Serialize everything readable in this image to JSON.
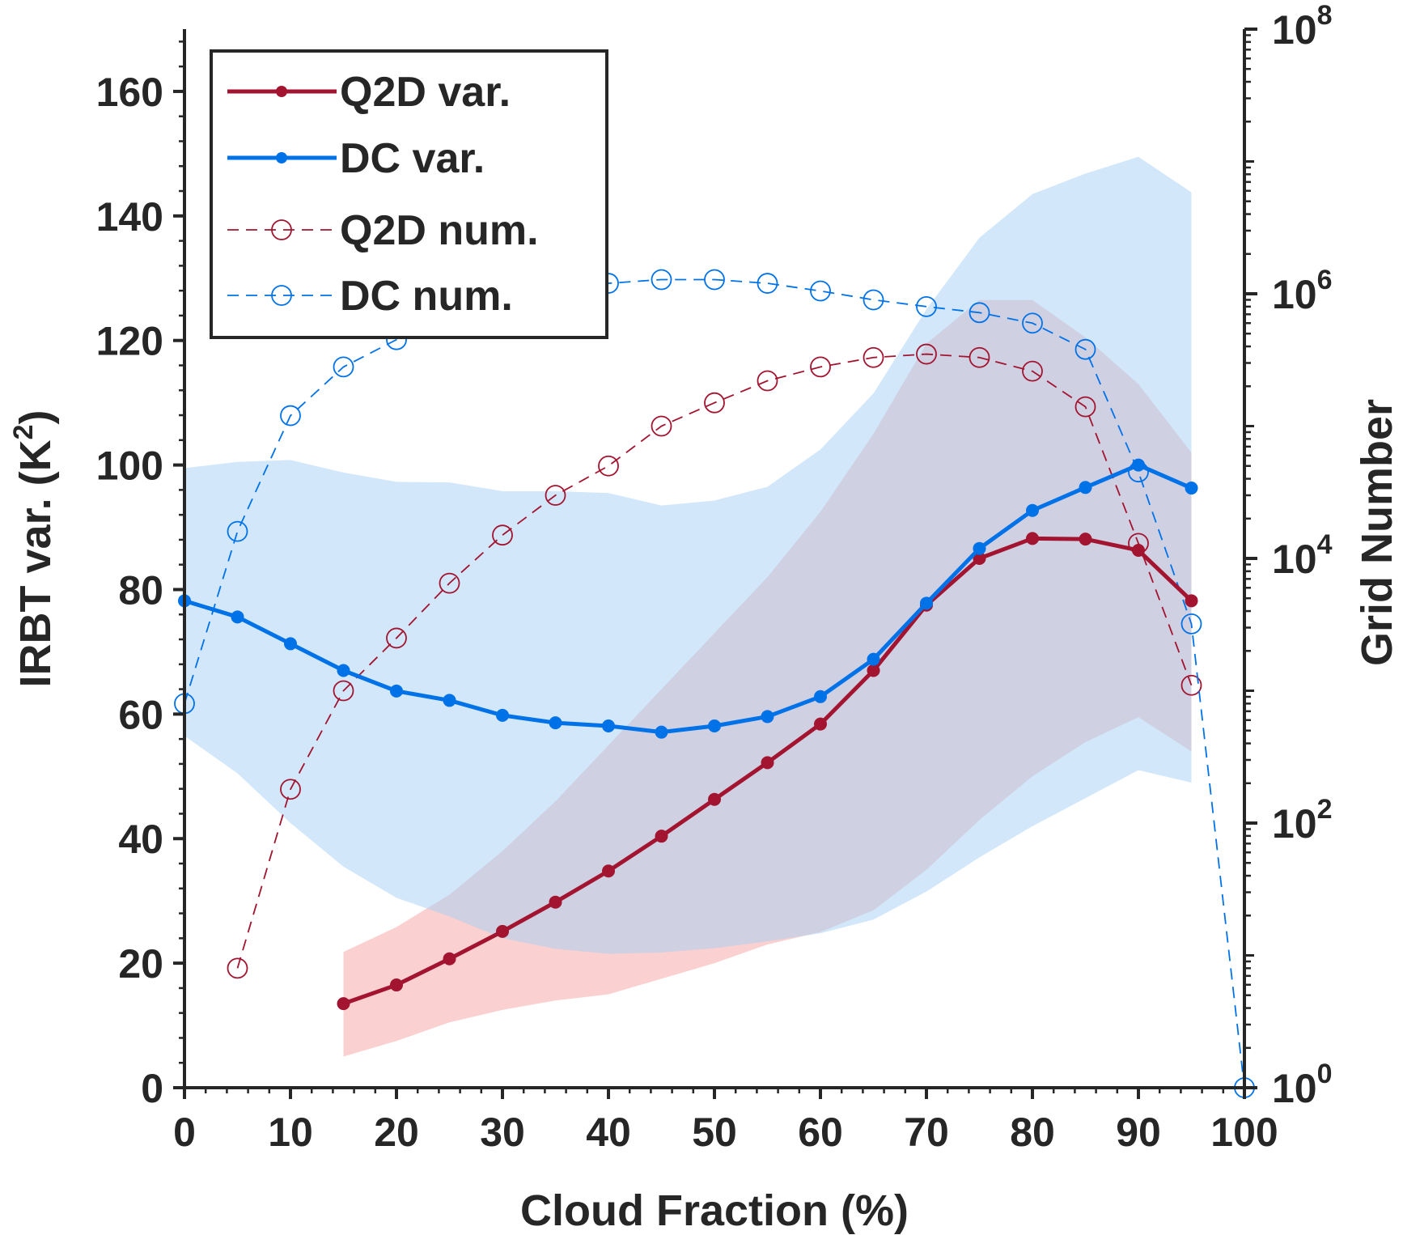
{
  "chart_data": {
    "type": "line",
    "xlabel": "Cloud Fraction (%)",
    "ylabel_left": "IRBT var. (K",
    "ylabel_left_sup": "2",
    "ylabel_left_tail": ")",
    "ylabel_right": "Grid Number",
    "xlim": [
      0,
      100
    ],
    "ylim_left": [
      0,
      170
    ],
    "ylim_right_log10": [
      0,
      8
    ],
    "right_axis_scale": "log",
    "x_ticks": [
      "0",
      "10",
      "20",
      "30",
      "40",
      "50",
      "60",
      "70",
      "80",
      "90",
      "100"
    ],
    "y_ticks_left": [
      "0",
      "20",
      "40",
      "60",
      "80",
      "100",
      "120",
      "140",
      "160"
    ],
    "y_ticks_right": [
      {
        "base": "10",
        "exp": "0",
        "value": 1
      },
      {
        "base": "10",
        "exp": "2",
        "value": 100
      },
      {
        "base": "10",
        "exp": "4",
        "value": 10000
      },
      {
        "base": "10",
        "exp": "6",
        "value": 1000000
      },
      {
        "base": "10",
        "exp": "8",
        "value": 100000000
      }
    ],
    "legend_position": "top-left",
    "colors": {
      "q2d": "#a2142f",
      "dc": "#0072e8",
      "q2d_band": "#f7a1a1",
      "dc_band": "#a6d0f5"
    },
    "series": [
      {
        "name": "Q2D var.",
        "axis": "left",
        "style": "solid-dot",
        "color": "#a2142f",
        "x": [
          15,
          20,
          25,
          30,
          35,
          40,
          45,
          50,
          55,
          60,
          65,
          70,
          75,
          80,
          85,
          90,
          95
        ],
        "values": [
          13.5,
          16.5,
          20.7,
          25.1,
          29.8,
          34.8,
          40.4,
          46.3,
          52.2,
          58.4,
          67,
          77.5,
          85,
          88.2,
          88.1,
          86.3,
          78.2
        ]
      },
      {
        "name": "DC var.",
        "axis": "left",
        "style": "solid-dot",
        "color": "#0072e8",
        "x": [
          0,
          5,
          10,
          15,
          20,
          25,
          30,
          35,
          40,
          45,
          50,
          55,
          60,
          65,
          70,
          75,
          80,
          85,
          90,
          95
        ],
        "values": [
          78.2,
          75.6,
          71.3,
          67,
          63.7,
          62.2,
          59.8,
          58.6,
          58.1,
          57.1,
          58.1,
          59.6,
          62.8,
          68.8,
          77.8,
          86.6,
          92.7,
          96.4,
          100,
          96.3
        ]
      },
      {
        "name": "Q2D num.",
        "axis": "right",
        "style": "dashed-circle",
        "color": "#a2142f",
        "x": [
          5,
          10,
          15,
          20,
          25,
          30,
          35,
          40,
          45,
          50,
          55,
          60,
          65,
          70,
          75,
          80,
          85,
          90,
          95
        ],
        "values": [
          8,
          180,
          1000,
          2500,
          6500,
          15000,
          30000,
          50000,
          100000,
          150000,
          220000,
          280000,
          330000,
          350000,
          330000,
          260000,
          140000,
          13000,
          1100
        ]
      },
      {
        "name": "DC num.",
        "axis": "right",
        "style": "dashed-circle",
        "color": "#0072e8",
        "x": [
          0,
          5,
          10,
          15,
          20,
          25,
          30,
          35,
          40,
          45,
          50,
          55,
          60,
          65,
          70,
          75,
          80,
          85,
          90,
          95,
          100
        ],
        "values": [
          800,
          16000,
          120000,
          280000,
          450000,
          650000,
          850000,
          1050000,
          1200000,
          1280000,
          1280000,
          1200000,
          1050000,
          900000,
          800000,
          720000,
          600000,
          380000,
          45000,
          3200,
          1
        ]
      }
    ],
    "bands": [
      {
        "name": "Q2D var. range",
        "color": "#f7a1a1",
        "x": [
          15,
          20,
          25,
          30,
          35,
          40,
          45,
          50,
          55,
          60,
          65,
          70,
          75,
          80,
          85,
          90,
          95
        ],
        "upper": [
          21.8,
          25.8,
          31,
          38,
          46,
          55,
          64,
          73,
          82,
          92.5,
          105,
          119.5,
          126.5,
          126.5,
          120.5,
          113,
          102
        ],
        "lower": [
          5,
          7.5,
          10.5,
          12.5,
          14,
          15,
          17.5,
          20,
          23,
          25,
          28.5,
          35,
          43,
          50,
          55.5,
          59.5,
          54
        ]
      },
      {
        "name": "DC var. range",
        "color": "#a6d0f5",
        "x": [
          0,
          5,
          10,
          15,
          20,
          25,
          30,
          35,
          40,
          45,
          50,
          55,
          60,
          65,
          70,
          75,
          80,
          85,
          90,
          95
        ],
        "upper": [
          99.5,
          100.5,
          100.8,
          98.8,
          97.3,
          97.2,
          95.8,
          95.8,
          95.5,
          93.5,
          94.3,
          96.5,
          102.5,
          111.5,
          125,
          136.5,
          143.5,
          146.8,
          149.5,
          143.8
        ],
        "lower": [
          56.5,
          50.5,
          42.5,
          35.5,
          30.5,
          27.5,
          24,
          22.3,
          21.5,
          21.7,
          22.4,
          23.5,
          24.8,
          27,
          31.5,
          37,
          42,
          46.5,
          51,
          49
        ]
      }
    ]
  }
}
